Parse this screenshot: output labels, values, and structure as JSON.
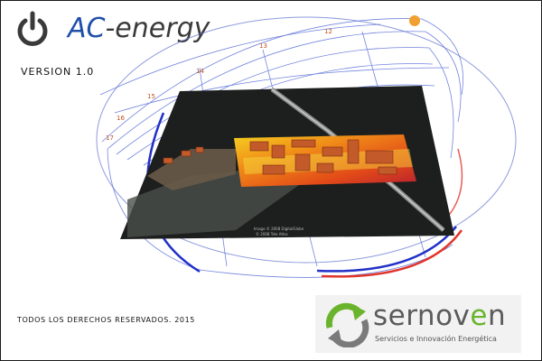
{
  "app": {
    "name_prefix": "AC",
    "name_suffix": "-energy",
    "version": "VERSION 1.0"
  },
  "icons": {
    "logo": "power-icon",
    "brand": "recycle-arrows-icon"
  },
  "footer": {
    "copyright": "TODOS LOS DERECHOS RESERVADOS. 2015"
  },
  "brand": {
    "name_part1": "sernov",
    "name_highlight": "e",
    "name_part2": "n",
    "tagline": "Servicios e Innovación Energética"
  },
  "visualization": {
    "hour_labels": [
      "12",
      "13",
      "14",
      "15",
      "16",
      "17"
    ],
    "map_caption_1": "Image © 2008 DigitalGlobe",
    "map_caption_2": "© 2008 Tele Atlas"
  },
  "colors": {
    "logo_blue": "#1f4fa8",
    "logo_gray": "#3a3a3a",
    "sunpath_blue": "#5a6fd8",
    "sunpath_red": "#e0352b",
    "sun_orange": "#f0a030",
    "brand_green": "#6ab42d"
  }
}
